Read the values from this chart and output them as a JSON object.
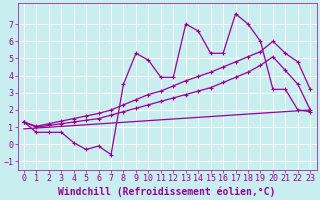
{
  "xlabel": "Windchill (Refroidissement éolien,°C)",
  "bg_color": "#c8eef0",
  "grid_color": "#b0d8dc",
  "line_color": "#990099",
  "xlim": [
    -0.5,
    23.5
  ],
  "ylim": [
    -1.5,
    8.2
  ],
  "xticks": [
    0,
    1,
    2,
    3,
    4,
    5,
    6,
    7,
    8,
    9,
    10,
    11,
    12,
    13,
    14,
    15,
    16,
    17,
    18,
    19,
    20,
    21,
    22,
    23
  ],
  "yticks": [
    -1,
    0,
    1,
    2,
    3,
    4,
    5,
    6,
    7
  ],
  "series1_x": [
    0,
    1,
    2,
    3,
    4,
    5,
    6,
    7,
    8,
    9,
    10,
    11,
    12,
    13,
    14,
    15,
    16,
    17,
    18,
    19,
    20,
    21,
    22,
    23
  ],
  "series1_y": [
    1.3,
    0.7,
    0.7,
    0.7,
    0.1,
    -0.3,
    -0.1,
    -0.6,
    3.5,
    5.3,
    4.9,
    3.9,
    3.9,
    7.0,
    6.6,
    5.3,
    5.3,
    7.6,
    7.0,
    6.0,
    3.2,
    3.2,
    2.0,
    1.9
  ],
  "series2_x": [
    0,
    1,
    2,
    3,
    4,
    5,
    6,
    7,
    8,
    9,
    10,
    11,
    12,
    13,
    14,
    15,
    16,
    17,
    18,
    19,
    20,
    21,
    22,
    23
  ],
  "series2_y": [
    1.3,
    1.05,
    1.2,
    1.35,
    1.5,
    1.65,
    1.8,
    2.0,
    2.3,
    2.6,
    2.9,
    3.1,
    3.4,
    3.7,
    3.95,
    4.2,
    4.5,
    4.8,
    5.1,
    5.4,
    6.0,
    5.3,
    4.8,
    3.2
  ],
  "series3_x": [
    0,
    1,
    2,
    3,
    4,
    5,
    6,
    7,
    8,
    9,
    10,
    11,
    12,
    13,
    14,
    15,
    16,
    17,
    18,
    19,
    20,
    21,
    22,
    23
  ],
  "series3_y": [
    1.3,
    1.0,
    1.1,
    1.2,
    1.3,
    1.4,
    1.5,
    1.7,
    1.9,
    2.1,
    2.3,
    2.5,
    2.7,
    2.9,
    3.1,
    3.3,
    3.6,
    3.9,
    4.2,
    4.6,
    5.1,
    4.3,
    3.5,
    2.0
  ],
  "series4_x": [
    0,
    23
  ],
  "series4_y": [
    0.9,
    2.0
  ],
  "font_size": 6,
  "xlabel_fontsize": 7
}
